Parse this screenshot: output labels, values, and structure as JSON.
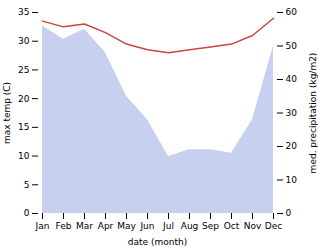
{
  "chart_data": {
    "type": "line",
    "categories": [
      "Jan",
      "Feb",
      "Mar",
      "Apr",
      "May",
      "Jun",
      "Jul",
      "Aug",
      "Sep",
      "Oct",
      "Nov",
      "Dec"
    ],
    "series": [
      {
        "type": "area",
        "axis": "y2",
        "color": "#c8d0f0",
        "values": [
          56,
          52,
          55,
          48,
          35,
          28,
          17,
          19,
          19,
          18,
          28,
          50
        ]
      },
      {
        "type": "line",
        "color": "#cc4444",
        "values": [
          33.5,
          32.5,
          33.0,
          31.5,
          29.5,
          28.5,
          28.0,
          28.5,
          29.0,
          29.5,
          31.0,
          34.0
        ]
      }
    ],
    "xlabel": "date (month)",
    "ylabel": "max temp (C)",
    "y2label": "med. precipitation (kg/m2)",
    "ylim": [
      0,
      35
    ],
    "yticks": [
      0,
      5,
      10,
      15,
      20,
      25,
      30,
      35
    ],
    "y2lim": [
      0,
      60
    ],
    "y2ticks": [
      0,
      10,
      20,
      30,
      40,
      50,
      60
    ],
    "grid": false
  }
}
